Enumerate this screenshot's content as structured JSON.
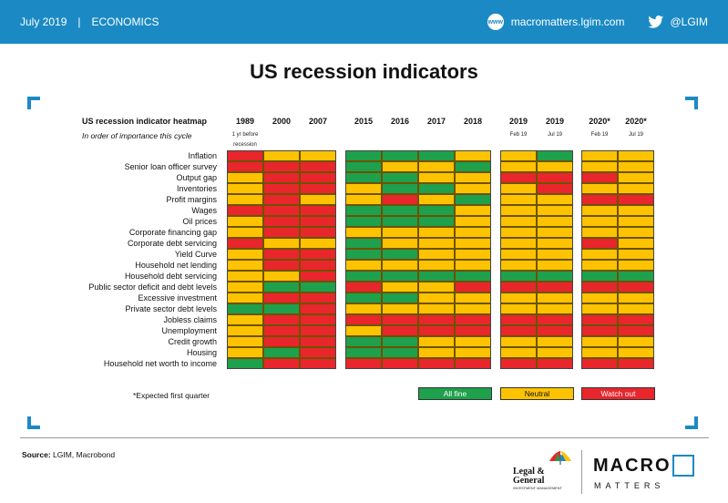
{
  "header": {
    "date": "July 2019",
    "separator": "|",
    "section": "ECONOMICS",
    "www_icon": "www",
    "site": "macromatters.lgim.com",
    "twitter_handle": "@LGIM"
  },
  "title": "US recession indicators",
  "heatmap": {
    "title": "US recession indicator heatmap",
    "subtitle": "In order of importance this cycle"
  },
  "colors": {
    "red": "#e8262c",
    "yellow": "#fdc300",
    "green": "#1ea04c",
    "accent_blue": "#1b8ac4"
  },
  "chart_data": {
    "type": "heatmap",
    "title": "US recession indicator heatmap",
    "columns": [
      {
        "label": "1989",
        "sub": "1 yr before recession"
      },
      {
        "label": "2000",
        "sub": ""
      },
      {
        "label": "2007",
        "sub": ""
      },
      {
        "label": "2015",
        "sub": ""
      },
      {
        "label": "2016",
        "sub": ""
      },
      {
        "label": "2017",
        "sub": ""
      },
      {
        "label": "2018",
        "sub": ""
      },
      {
        "label": "2019",
        "sub": "Feb 19"
      },
      {
        "label": "2019",
        "sub": "Jul 19"
      },
      {
        "label": "2020*",
        "sub": "Feb 19"
      },
      {
        "label": "2020*",
        "sub": "Jul 19"
      }
    ],
    "rows": [
      "Inflation",
      "Senior loan officer survey",
      "Output gap",
      "Inventories",
      "Profit margins",
      "Wages",
      "Oil prices",
      "Corporate financing gap",
      "Corporate debt servicing",
      "Yield Curve",
      "Household net lending",
      "Household debt servicing",
      "Public sector deficit and debt levels",
      "Excessive investment",
      "Private sector debt levels",
      "Jobless claims",
      "Unemployment",
      "Credit growth",
      "Housing",
      "Household net worth to income"
    ],
    "values": [
      [
        "R",
        "Y",
        "Y",
        "G",
        "G",
        "G",
        "Y",
        "Y",
        "G",
        "Y",
        "Y"
      ],
      [
        "R",
        "R",
        "R",
        "G",
        "Y",
        "Y",
        "G",
        "Y",
        "Y",
        "Y",
        "Y"
      ],
      [
        "Y",
        "R",
        "R",
        "G",
        "G",
        "Y",
        "Y",
        "R",
        "R",
        "R",
        "Y"
      ],
      [
        "Y",
        "R",
        "R",
        "Y",
        "G",
        "G",
        "Y",
        "Y",
        "R",
        "Y",
        "Y"
      ],
      [
        "Y",
        "R",
        "Y",
        "Y",
        "R",
        "Y",
        "G",
        "Y",
        "Y",
        "R",
        "R"
      ],
      [
        "R",
        "R",
        "R",
        "G",
        "G",
        "G",
        "Y",
        "Y",
        "Y",
        "Y",
        "Y"
      ],
      [
        "Y",
        "R",
        "R",
        "G",
        "G",
        "G",
        "Y",
        "Y",
        "Y",
        "Y",
        "Y"
      ],
      [
        "Y",
        "R",
        "R",
        "Y",
        "Y",
        "Y",
        "Y",
        "Y",
        "Y",
        "Y",
        "Y"
      ],
      [
        "R",
        "Y",
        "Y",
        "G",
        "Y",
        "Y",
        "Y",
        "Y",
        "Y",
        "R",
        "Y"
      ],
      [
        "Y",
        "R",
        "R",
        "G",
        "G",
        "Y",
        "Y",
        "Y",
        "Y",
        "Y",
        "Y"
      ],
      [
        "Y",
        "R",
        "R",
        "Y",
        "Y",
        "Y",
        "Y",
        "Y",
        "Y",
        "Y",
        "Y"
      ],
      [
        "Y",
        "Y",
        "R",
        "G",
        "G",
        "G",
        "G",
        "G",
        "G",
        "G",
        "G"
      ],
      [
        "Y",
        "G",
        "G",
        "R",
        "Y",
        "Y",
        "R",
        "R",
        "R",
        "R",
        "R"
      ],
      [
        "Y",
        "R",
        "R",
        "G",
        "G",
        "Y",
        "Y",
        "Y",
        "Y",
        "Y",
        "Y"
      ],
      [
        "G",
        "G",
        "R",
        "Y",
        "Y",
        "Y",
        "Y",
        "Y",
        "Y",
        "Y",
        "Y"
      ],
      [
        "Y",
        "R",
        "R",
        "R",
        "R",
        "R",
        "R",
        "R",
        "R",
        "R",
        "R"
      ],
      [
        "Y",
        "R",
        "R",
        "Y",
        "R",
        "R",
        "R",
        "R",
        "R",
        "R",
        "R"
      ],
      [
        "Y",
        "R",
        "R",
        "G",
        "G",
        "Y",
        "Y",
        "Y",
        "Y",
        "Y",
        "Y"
      ],
      [
        "Y",
        "G",
        "R",
        "G",
        "G",
        "Y",
        "Y",
        "Y",
        "Y",
        "Y",
        "Y"
      ],
      [
        "G",
        "R",
        "R",
        "R",
        "R",
        "R",
        "R",
        "R",
        "R",
        "R",
        "R"
      ]
    ],
    "legend": [
      {
        "label": "All fine",
        "code": "G"
      },
      {
        "label": "Neutral",
        "code": "Y"
      },
      {
        "label": "Watch out",
        "code": "R"
      }
    ]
  },
  "footnote": "*Expected first quarter",
  "source": {
    "label": "Source:",
    "text": " LGIM, Macrobond"
  },
  "logos": {
    "lg_name": "Legal & General",
    "lg_sub": "INVESTMENT MANAGEMENT",
    "macro": "MACRO",
    "matters": "MATTERS"
  }
}
